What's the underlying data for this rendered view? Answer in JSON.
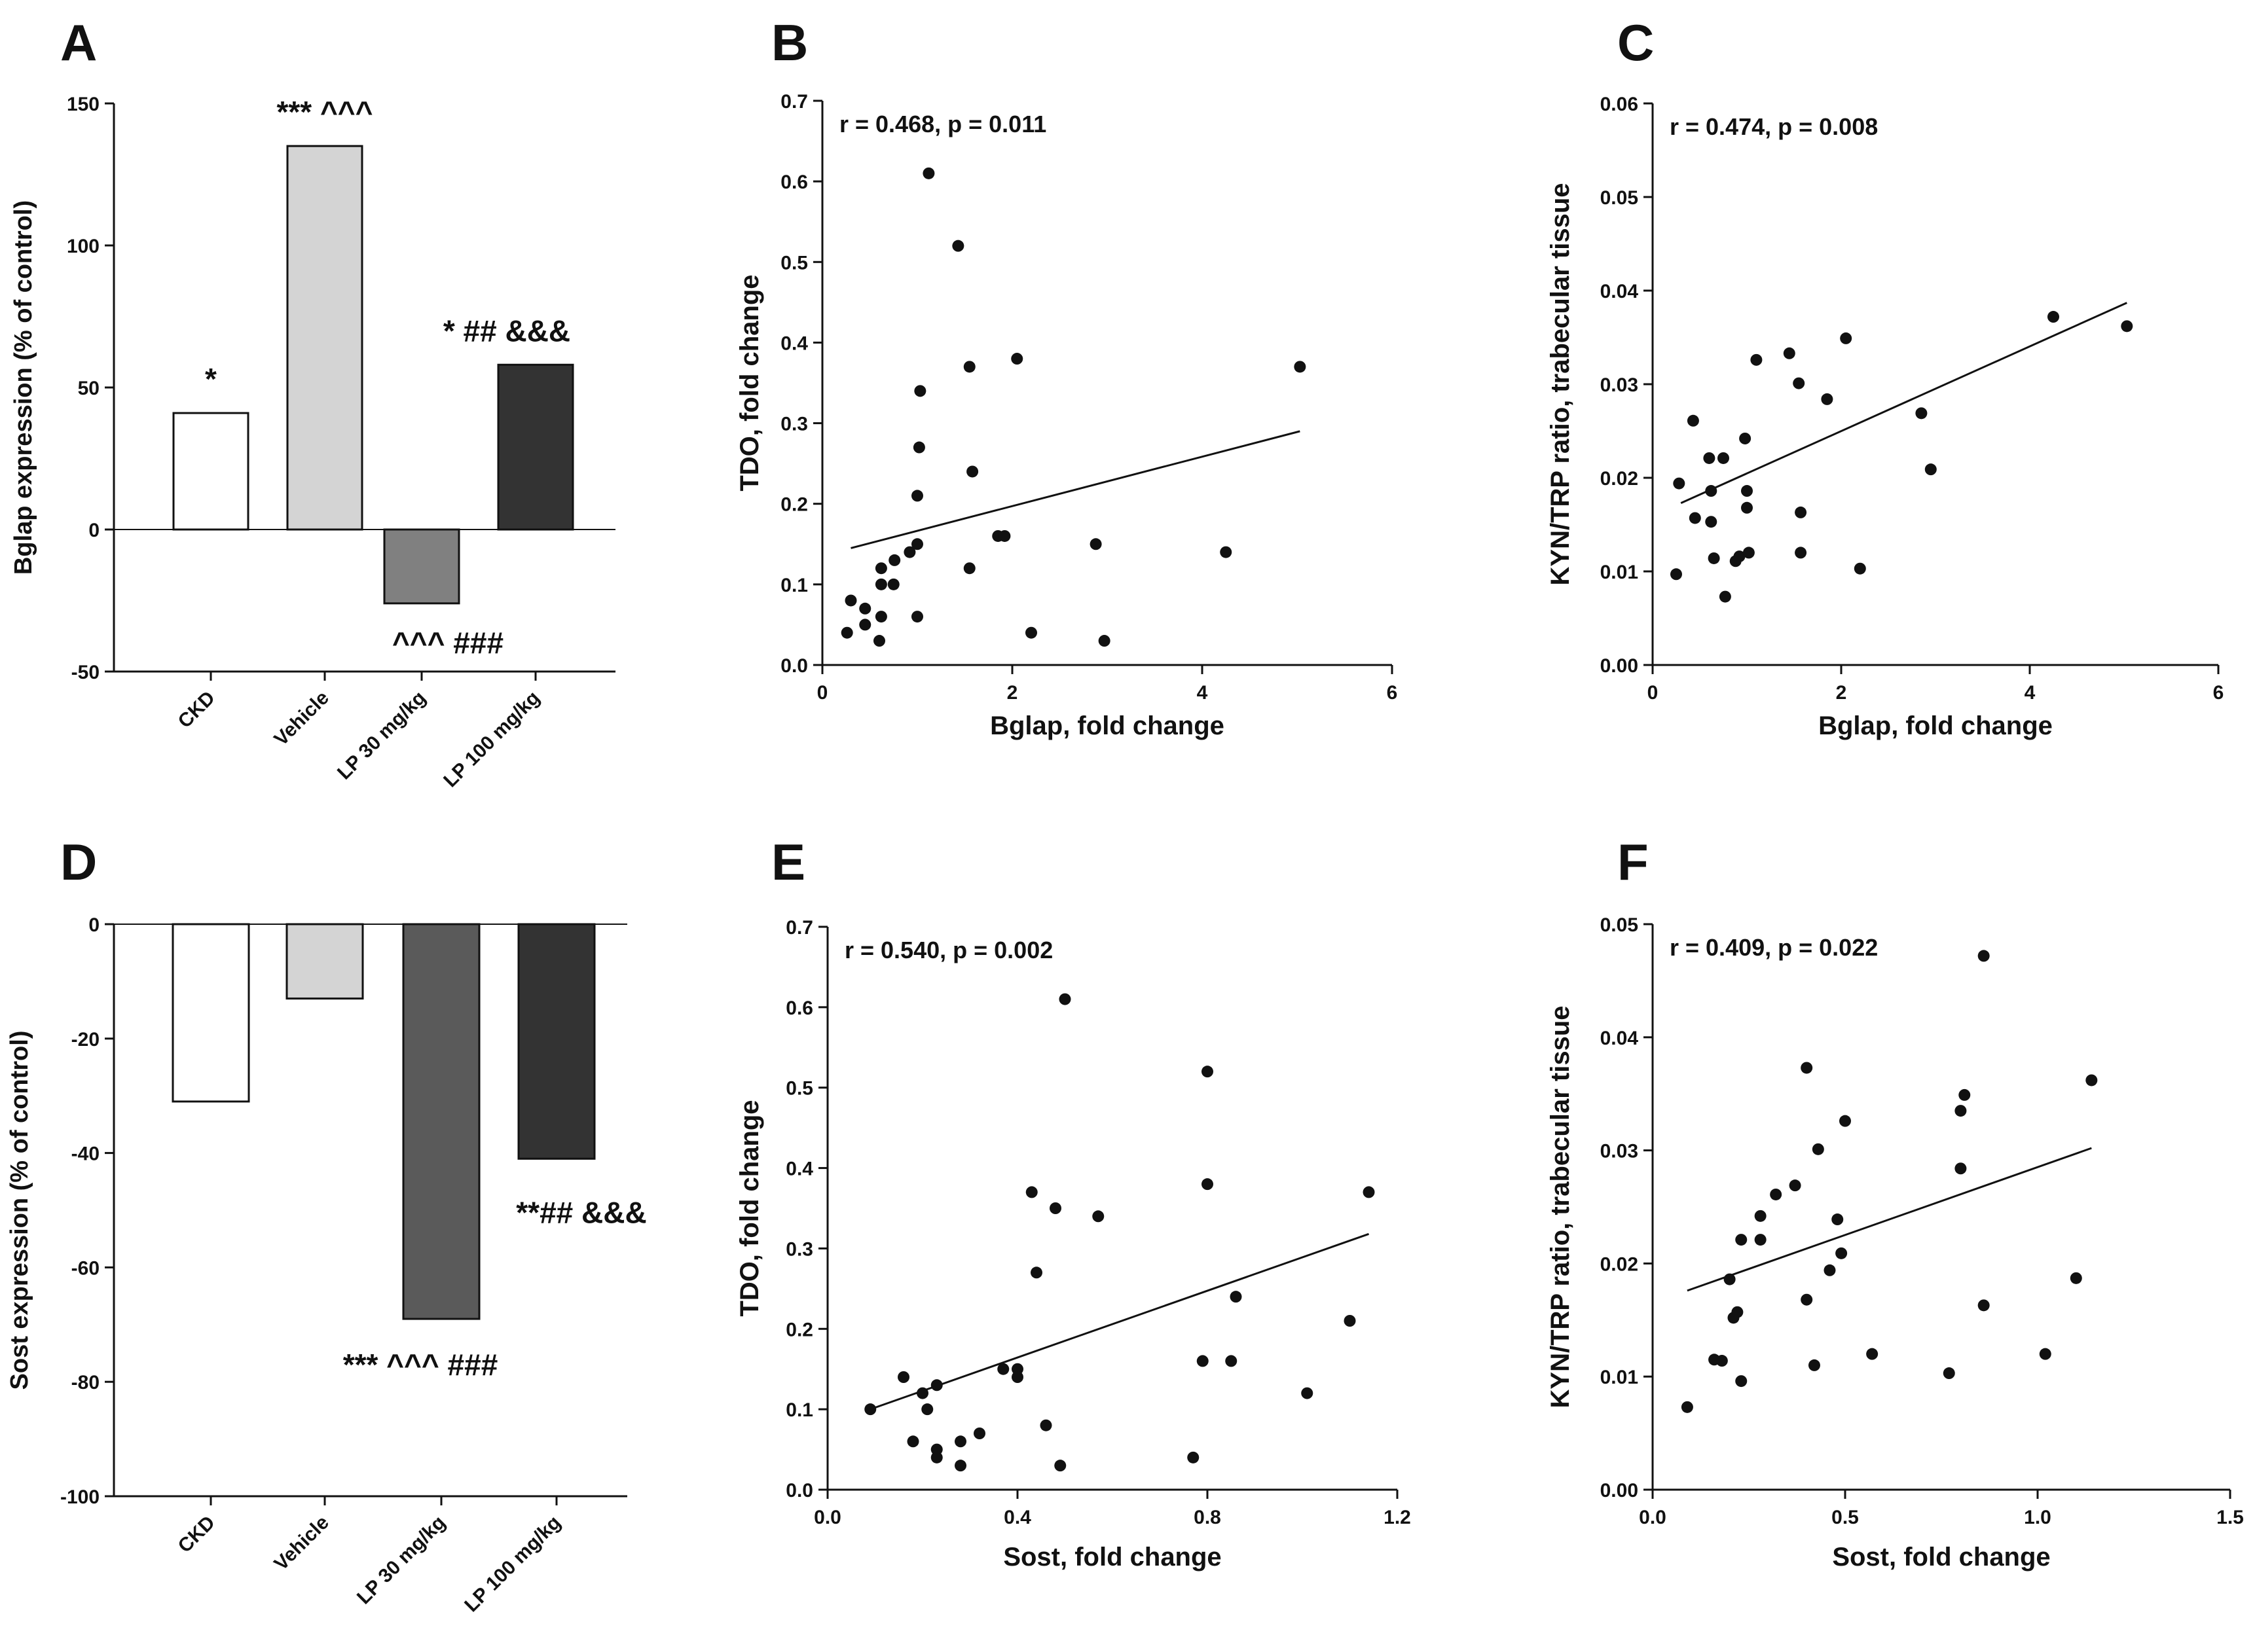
{
  "chart_data": [
    {
      "id": "A",
      "panel_label": "A",
      "type": "bar",
      "ylabel": "Bglap expression (% of control)",
      "ylim": [
        -50,
        150
      ],
      "yticks": [
        -50,
        0,
        50,
        100,
        150
      ],
      "categories": [
        "CKD",
        "Vehicle",
        "LP 30 mg/kg",
        "LP 100 mg/kg"
      ],
      "values": [
        41,
        135,
        -26,
        58
      ],
      "colors": [
        "#ffffff",
        "#d4d4d4",
        "#808080",
        "#333333"
      ],
      "annotations": [
        "*",
        "*** ^^^",
        "^^^ ###",
        "* ## &&&"
      ]
    },
    {
      "id": "B",
      "panel_label": "B",
      "type": "scatter",
      "stat": "r = 0.468, p = 0.011",
      "xlabel": "Bglap, fold change",
      "ylabel": "TDO, fold change",
      "xlim": [
        0,
        6
      ],
      "ylim": [
        0,
        0.7
      ],
      "xticks": [
        0,
        2,
        4,
        6
      ],
      "yticks": [
        0.0,
        0.1,
        0.2,
        0.3,
        0.4,
        0.5,
        0.6,
        0.7
      ],
      "points": [
        [
          0.26,
          0.04
        ],
        [
          0.3,
          0.08
        ],
        [
          0.45,
          0.05
        ],
        [
          0.45,
          0.07
        ],
        [
          0.6,
          0.03
        ],
        [
          0.62,
          0.06
        ],
        [
          0.62,
          0.1
        ],
        [
          0.62,
          0.12
        ],
        [
          0.75,
          0.1
        ],
        [
          0.76,
          0.13
        ],
        [
          0.92,
          0.14
        ],
        [
          1.0,
          0.15
        ],
        [
          1.0,
          0.06
        ],
        [
          1.0,
          0.21
        ],
        [
          1.02,
          0.27
        ],
        [
          1.03,
          0.34
        ],
        [
          1.12,
          0.61
        ],
        [
          1.43,
          0.52
        ],
        [
          1.55,
          0.12
        ],
        [
          1.55,
          0.37
        ],
        [
          1.58,
          0.24
        ],
        [
          1.85,
          0.16
        ],
        [
          1.92,
          0.16
        ],
        [
          2.05,
          0.38
        ],
        [
          2.2,
          0.04
        ],
        [
          2.88,
          0.15
        ],
        [
          2.97,
          0.03
        ],
        [
          4.25,
          0.14
        ],
        [
          5.03,
          0.37
        ]
      ],
      "fit": [
        [
          0.3,
          0.145
        ],
        [
          5.03,
          0.29
        ]
      ]
    },
    {
      "id": "C",
      "panel_label": "C",
      "type": "scatter",
      "stat": "r = 0.474, p = 0.008",
      "xlabel": "Bglap, fold change",
      "ylabel": "KYN/TRP ratio, trabecular tissue",
      "xlim": [
        0,
        6
      ],
      "ylim": [
        0,
        0.06
      ],
      "xticks": [
        0,
        2,
        4,
        6
      ],
      "yticks": [
        0.0,
        0.01,
        0.02,
        0.03,
        0.04,
        0.05,
        0.06
      ],
      "points": [
        [
          0.25,
          0.0097
        ],
        [
          0.28,
          0.0194
        ],
        [
          0.43,
          0.0261
        ],
        [
          0.45,
          0.0157
        ],
        [
          0.6,
          0.0221
        ],
        [
          0.62,
          0.0186
        ],
        [
          0.62,
          0.0153
        ],
        [
          0.65,
          0.0114
        ],
        [
          0.75,
          0.0221
        ],
        [
          0.77,
          0.0073
        ],
        [
          0.88,
          0.0111
        ],
        [
          0.92,
          0.0116
        ],
        [
          0.98,
          0.0242
        ],
        [
          1.0,
          0.0186
        ],
        [
          1.0,
          0.0168
        ],
        [
          1.02,
          0.012
        ],
        [
          1.1,
          0.0326
        ],
        [
          1.45,
          0.0333
        ],
        [
          1.55,
          0.0301
        ],
        [
          1.57,
          0.0163
        ],
        [
          1.57,
          0.012
        ],
        [
          1.85,
          0.0284
        ],
        [
          2.05,
          0.0349
        ],
        [
          2.2,
          0.0103
        ],
        [
          2.85,
          0.0269
        ],
        [
          2.95,
          0.0209
        ],
        [
          4.25,
          0.0372
        ],
        [
          5.03,
          0.0362
        ]
      ],
      "fit": [
        [
          0.3,
          0.0173
        ],
        [
          5.03,
          0.0387
        ]
      ]
    },
    {
      "id": "D",
      "panel_label": "D",
      "type": "bar",
      "ylabel": "Sost expression (% of control)",
      "ylim": [
        -100,
        0
      ],
      "yticks": [
        -100,
        -80,
        -60,
        -40,
        -20,
        0
      ],
      "categories": [
        "CKD",
        "Vehicle",
        "LP 30 mg/kg",
        "LP 100 mg/kg"
      ],
      "values": [
        -31,
        -13,
        -69,
        -41
      ],
      "colors": [
        "#ffffff",
        "#d4d4d4",
        "#5a5a5a",
        "#333333"
      ],
      "annotations": [
        "",
        "",
        "*** ^^^ ###",
        "**## &&&"
      ]
    },
    {
      "id": "E",
      "panel_label": "E",
      "type": "scatter",
      "stat": "r = 0.540, p = 0.002",
      "xlabel": "Sost, fold change",
      "ylabel": "TDO, fold change",
      "xlim": [
        0,
        1.2
      ],
      "ylim": [
        0,
        0.7
      ],
      "xticks": [
        0.0,
        0.4,
        0.8,
        1.2
      ],
      "yticks": [
        0.0,
        0.1,
        0.2,
        0.3,
        0.4,
        0.5,
        0.6,
        0.7
      ],
      "points": [
        [
          0.09,
          0.1
        ],
        [
          0.16,
          0.14
        ],
        [
          0.18,
          0.06
        ],
        [
          0.2,
          0.12
        ],
        [
          0.21,
          0.1
        ],
        [
          0.23,
          0.13
        ],
        [
          0.23,
          0.05
        ],
        [
          0.23,
          0.04
        ],
        [
          0.28,
          0.06
        ],
        [
          0.28,
          0.03
        ],
        [
          0.32,
          0.07
        ],
        [
          0.37,
          0.15
        ],
        [
          0.4,
          0.15
        ],
        [
          0.4,
          0.14
        ],
        [
          0.43,
          0.37
        ],
        [
          0.44,
          0.27
        ],
        [
          0.46,
          0.08
        ],
        [
          0.48,
          0.35
        ],
        [
          0.49,
          0.03
        ],
        [
          0.5,
          0.61
        ],
        [
          0.57,
          0.34
        ],
        [
          0.77,
          0.04
        ],
        [
          0.79,
          0.16
        ],
        [
          0.8,
          0.52
        ],
        [
          0.8,
          0.38
        ],
        [
          0.85,
          0.16
        ],
        [
          0.86,
          0.24
        ],
        [
          1.01,
          0.12
        ],
        [
          1.1,
          0.21
        ],
        [
          1.14,
          0.37
        ]
      ],
      "fit": [
        [
          0.09,
          0.1
        ],
        [
          1.14,
          0.318
        ]
      ]
    },
    {
      "id": "F",
      "panel_label": "F",
      "type": "scatter",
      "stat": "r = 0.409, p = 0.022",
      "xlabel": "Sost, fold change",
      "ylabel": "KYN/TRP ratio, trabecular tissue",
      "xlim": [
        0,
        1.5
      ],
      "ylim": [
        0,
        0.05
      ],
      "xticks": [
        0.0,
        0.5,
        1.0,
        1.5
      ],
      "yticks": [
        0.0,
        0.01,
        0.02,
        0.03,
        0.04,
        0.05
      ],
      "points": [
        [
          0.09,
          0.0073
        ],
        [
          0.16,
          0.0115
        ],
        [
          0.18,
          0.0114
        ],
        [
          0.2,
          0.0186
        ],
        [
          0.21,
          0.0152
        ],
        [
          0.22,
          0.0157
        ],
        [
          0.23,
          0.0096
        ],
        [
          0.23,
          0.0221
        ],
        [
          0.28,
          0.0221
        ],
        [
          0.28,
          0.0242
        ],
        [
          0.32,
          0.0261
        ],
        [
          0.37,
          0.0269
        ],
        [
          0.4,
          0.0373
        ],
        [
          0.4,
          0.0168
        ],
        [
          0.42,
          0.011
        ],
        [
          0.43,
          0.0301
        ],
        [
          0.46,
          0.0194
        ],
        [
          0.48,
          0.0239
        ],
        [
          0.49,
          0.0209
        ],
        [
          0.5,
          0.0326
        ],
        [
          0.57,
          0.012
        ],
        [
          0.77,
          0.0103
        ],
        [
          0.8,
          0.0284
        ],
        [
          0.8,
          0.0335
        ],
        [
          0.81,
          0.0349
        ],
        [
          0.86,
          0.0163
        ],
        [
          0.86,
          0.0472
        ],
        [
          1.02,
          0.012
        ],
        [
          1.1,
          0.0187
        ],
        [
          1.14,
          0.0362
        ]
      ],
      "fit": [
        [
          0.09,
          0.0176
        ],
        [
          1.14,
          0.0302
        ]
      ]
    }
  ]
}
